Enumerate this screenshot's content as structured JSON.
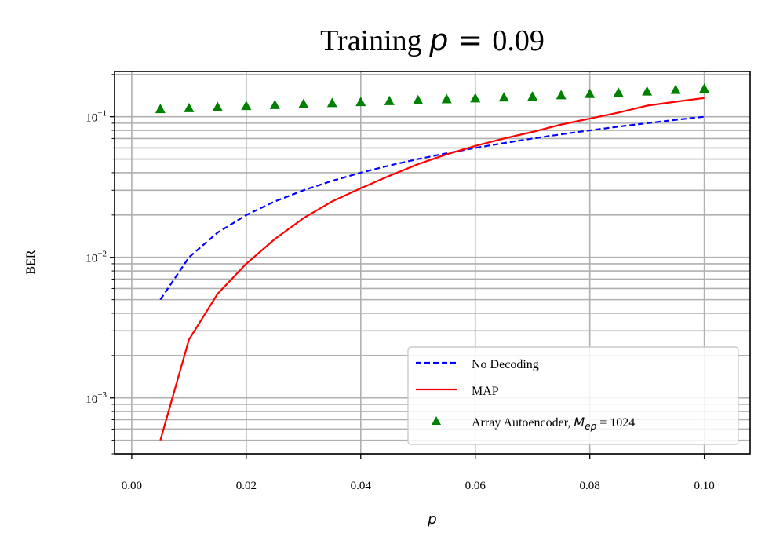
{
  "chart_data": {
    "type": "line",
    "title_prefix": "Training",
    "title_var": "p",
    "title_eq": " = ",
    "title_value": "0.09",
    "xlabel": "p",
    "ylabel": "BER",
    "yscale": "log",
    "xlim": [
      -0.003,
      0.108
    ],
    "ylim": [
      0.0004,
      0.21
    ],
    "xticks": [
      0.0,
      0.02,
      0.04,
      0.06,
      0.08,
      0.1
    ],
    "xtick_labels": [
      "0.00",
      "0.02",
      "0.04",
      "0.06",
      "0.08",
      "0.10"
    ],
    "yticks": [
      0.001,
      0.01,
      0.1
    ],
    "ytick_base": "10",
    "ytick_exponents": [
      "−3",
      "−2",
      "−1"
    ],
    "grid": true,
    "legend_position": "lower-right",
    "x": [
      0.005,
      0.01,
      0.015,
      0.02,
      0.025,
      0.03,
      0.035,
      0.04,
      0.045,
      0.05,
      0.055,
      0.06,
      0.065,
      0.07,
      0.075,
      0.08,
      0.085,
      0.09,
      0.095,
      0.1
    ],
    "series": [
      {
        "name": "No Decoding",
        "style": "dashed",
        "color": "#0000ff",
        "values": [
          0.005,
          0.01,
          0.015,
          0.02,
          0.025,
          0.03,
          0.035,
          0.04,
          0.045,
          0.05,
          0.055,
          0.06,
          0.065,
          0.07,
          0.075,
          0.08,
          0.085,
          0.09,
          0.095,
          0.1
        ]
      },
      {
        "name": "MAP",
        "style": "solid",
        "color": "#ff0000",
        "values": [
          0.0005,
          0.0026,
          0.0055,
          0.009,
          0.0135,
          0.019,
          0.025,
          0.031,
          0.038,
          0.046,
          0.054,
          0.062,
          0.07,
          0.078,
          0.088,
          0.097,
          0.107,
          0.12,
          0.128,
          0.136
        ]
      },
      {
        "name_prefix": "Array Autoencoder, ",
        "name_var": "M",
        "name_sub": "ep",
        "name_suffix": " = 1024",
        "style": "markers",
        "marker": "triangle",
        "color": "#008000",
        "values": [
          0.113,
          0.115,
          0.117,
          0.119,
          0.121,
          0.123,
          0.125,
          0.127,
          0.129,
          0.131,
          0.133,
          0.135,
          0.137,
          0.139,
          0.142,
          0.145,
          0.148,
          0.151,
          0.155,
          0.158
        ]
      }
    ]
  }
}
